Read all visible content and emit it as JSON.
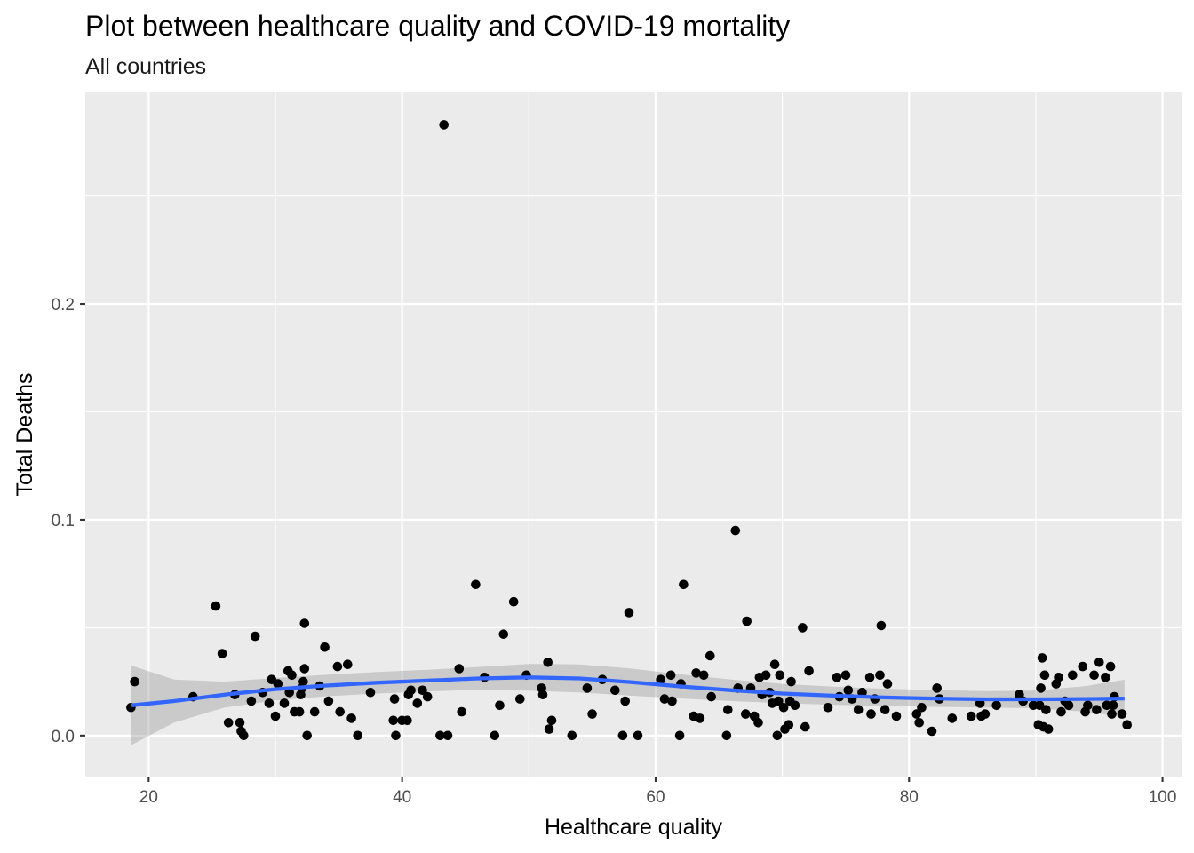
{
  "chart_data": {
    "type": "scatter",
    "title": "Plot between healthcare quality and COVID-19 mortality",
    "subtitle": "All countries",
    "xlabel": "Healthcare quality",
    "ylabel": "Total Deaths",
    "xlim": [
      15,
      101.5
    ],
    "ylim": [
      -0.019,
      0.298
    ],
    "x_ticks": [
      20,
      40,
      60,
      80,
      100
    ],
    "x_tick_labels": [
      "20",
      "40",
      "60",
      "80",
      "100"
    ],
    "y_ticks": [
      0.0,
      0.1,
      0.2
    ],
    "y_tick_labels": [
      "0.0",
      "0.1",
      "0.2"
    ],
    "grid": true,
    "colors": {
      "panel": "#ebebeb",
      "grid": "#ffffff",
      "points": "#000000",
      "smooth_line": "#3366ff",
      "ribbon": "#999999"
    },
    "points": [
      [
        18.6,
        0.013
      ],
      [
        18.9,
        0.025
      ],
      [
        23.5,
        0.018
      ],
      [
        25.3,
        0.06
      ],
      [
        25.8,
        0.038
      ],
      [
        26.3,
        0.006
      ],
      [
        26.8,
        0.019
      ],
      [
        27.2,
        0.006
      ],
      [
        27.3,
        0.002
      ],
      [
        27.5,
        0.0
      ],
      [
        28.1,
        0.016
      ],
      [
        28.4,
        0.046
      ],
      [
        29.0,
        0.02
      ],
      [
        29.5,
        0.015
      ],
      [
        29.7,
        0.026
      ],
      [
        30.0,
        0.009
      ],
      [
        30.2,
        0.024
      ],
      [
        30.7,
        0.015
      ],
      [
        31.0,
        0.03
      ],
      [
        31.1,
        0.02
      ],
      [
        31.3,
        0.028
      ],
      [
        31.5,
        0.011
      ],
      [
        31.9,
        0.011
      ],
      [
        32.0,
        0.019
      ],
      [
        32.1,
        0.022
      ],
      [
        32.2,
        0.025
      ],
      [
        32.3,
        0.031
      ],
      [
        32.3,
        0.052
      ],
      [
        32.5,
        0.0
      ],
      [
        33.1,
        0.011
      ],
      [
        33.5,
        0.023
      ],
      [
        33.9,
        0.041
      ],
      [
        34.2,
        0.016
      ],
      [
        34.9,
        0.032
      ],
      [
        35.1,
        0.011
      ],
      [
        35.7,
        0.033
      ],
      [
        36.0,
        0.008
      ],
      [
        36.5,
        0.0
      ],
      [
        37.5,
        0.02
      ],
      [
        39.3,
        0.007
      ],
      [
        39.4,
        0.017
      ],
      [
        39.5,
        0.0
      ],
      [
        40.0,
        0.007
      ],
      [
        40.4,
        0.007
      ],
      [
        40.5,
        0.019
      ],
      [
        40.7,
        0.021
      ],
      [
        41.2,
        0.015
      ],
      [
        41.6,
        0.021
      ],
      [
        42.0,
        0.018
      ],
      [
        43.0,
        0.0
      ],
      [
        43.3,
        0.283
      ],
      [
        43.6,
        0.0
      ],
      [
        44.5,
        0.031
      ],
      [
        44.7,
        0.011
      ],
      [
        45.8,
        0.07
      ],
      [
        46.5,
        0.027
      ],
      [
        47.3,
        0.0
      ],
      [
        47.7,
        0.014
      ],
      [
        48.0,
        0.047
      ],
      [
        48.8,
        0.062
      ],
      [
        49.3,
        0.017
      ],
      [
        49.8,
        0.028
      ],
      [
        51.0,
        0.022
      ],
      [
        51.1,
        0.019
      ],
      [
        51.5,
        0.034
      ],
      [
        51.6,
        0.003
      ],
      [
        51.8,
        0.007
      ],
      [
        53.4,
        0.0
      ],
      [
        54.6,
        0.022
      ],
      [
        55.0,
        0.01
      ],
      [
        55.8,
        0.026
      ],
      [
        56.8,
        0.021
      ],
      [
        57.4,
        0.0
      ],
      [
        57.6,
        0.016
      ],
      [
        57.9,
        0.057
      ],
      [
        58.6,
        0.0
      ],
      [
        60.4,
        0.026
      ],
      [
        60.7,
        0.017
      ],
      [
        61.2,
        0.028
      ],
      [
        61.3,
        0.016
      ],
      [
        61.9,
        0.0
      ],
      [
        62.0,
        0.024
      ],
      [
        62.2,
        0.07
      ],
      [
        63.0,
        0.009
      ],
      [
        63.2,
        0.029
      ],
      [
        63.5,
        0.008
      ],
      [
        63.8,
        0.028
      ],
      [
        64.3,
        0.037
      ],
      [
        64.4,
        0.018
      ],
      [
        65.6,
        0.0
      ],
      [
        65.7,
        0.012
      ],
      [
        66.3,
        0.095
      ],
      [
        66.5,
        0.022
      ],
      [
        67.1,
        0.01
      ],
      [
        67.2,
        0.053
      ],
      [
        67.5,
        0.022
      ],
      [
        67.8,
        0.009
      ],
      [
        68.1,
        0.006
      ],
      [
        68.2,
        0.027
      ],
      [
        68.4,
        0.019
      ],
      [
        68.7,
        0.028
      ],
      [
        69.0,
        0.02
      ],
      [
        69.2,
        0.015
      ],
      [
        69.4,
        0.033
      ],
      [
        69.6,
        0.0
      ],
      [
        69.7,
        0.016
      ],
      [
        69.8,
        0.028
      ],
      [
        70.1,
        0.013
      ],
      [
        70.2,
        0.003
      ],
      [
        70.5,
        0.005
      ],
      [
        70.6,
        0.016
      ],
      [
        70.7,
        0.025
      ],
      [
        71.0,
        0.014
      ],
      [
        71.6,
        0.05
      ],
      [
        71.8,
        0.004
      ],
      [
        72.1,
        0.03
      ],
      [
        73.6,
        0.013
      ],
      [
        74.3,
        0.027
      ],
      [
        74.5,
        0.018
      ],
      [
        75.0,
        0.028
      ],
      [
        75.2,
        0.021
      ],
      [
        75.5,
        0.017
      ],
      [
        76.0,
        0.012
      ],
      [
        76.3,
        0.02
      ],
      [
        76.9,
        0.027
      ],
      [
        77.0,
        0.01
      ],
      [
        77.3,
        0.017
      ],
      [
        77.7,
        0.028
      ],
      [
        77.8,
        0.051
      ],
      [
        78.1,
        0.012
      ],
      [
        78.3,
        0.024
      ],
      [
        79.0,
        0.009
      ],
      [
        80.6,
        0.01
      ],
      [
        80.8,
        0.006
      ],
      [
        81.0,
        0.013
      ],
      [
        81.8,
        0.002
      ],
      [
        82.2,
        0.022
      ],
      [
        82.4,
        0.017
      ],
      [
        83.4,
        0.008
      ],
      [
        84.9,
        0.009
      ],
      [
        85.6,
        0.015
      ],
      [
        85.7,
        0.009
      ],
      [
        86.0,
        0.01
      ],
      [
        86.9,
        0.014
      ],
      [
        88.7,
        0.019
      ],
      [
        89.0,
        0.016
      ],
      [
        89.8,
        0.014
      ],
      [
        90.2,
        0.005
      ],
      [
        90.3,
        0.014
      ],
      [
        90.4,
        0.022
      ],
      [
        90.5,
        0.036
      ],
      [
        90.6,
        0.004
      ],
      [
        90.7,
        0.028
      ],
      [
        90.8,
        0.012
      ],
      [
        91.0,
        0.003
      ],
      [
        91.6,
        0.024
      ],
      [
        91.8,
        0.027
      ],
      [
        92.0,
        0.011
      ],
      [
        92.3,
        0.016
      ],
      [
        92.6,
        0.014
      ],
      [
        92.9,
        0.028
      ],
      [
        93.7,
        0.032
      ],
      [
        93.9,
        0.011
      ],
      [
        94.1,
        0.014
      ],
      [
        94.6,
        0.028
      ],
      [
        94.8,
        0.012
      ],
      [
        95.0,
        0.034
      ],
      [
        95.5,
        0.027
      ],
      [
        95.6,
        0.014
      ],
      [
        95.9,
        0.032
      ],
      [
        96.0,
        0.01
      ],
      [
        96.1,
        0.014
      ],
      [
        96.2,
        0.018
      ],
      [
        96.8,
        0.01
      ],
      [
        97.2,
        0.005
      ]
    ],
    "smooth_line": {
      "x": [
        18.6,
        22,
        26,
        30,
        34,
        38,
        42,
        46,
        50,
        54,
        58,
        62,
        66,
        70,
        74,
        78,
        82,
        86,
        90,
        94,
        97
      ],
      "y": [
        0.014,
        0.016,
        0.019,
        0.0215,
        0.0232,
        0.0245,
        0.0255,
        0.0265,
        0.027,
        0.0265,
        0.0248,
        0.0228,
        0.021,
        0.0195,
        0.0185,
        0.0177,
        0.0172,
        0.0168,
        0.0168,
        0.017,
        0.0172
      ],
      "ribbon_lower": [
        -0.0045,
        0.006,
        0.013,
        0.0163,
        0.0182,
        0.0195,
        0.0205,
        0.0212,
        0.0208,
        0.02,
        0.0185,
        0.0172,
        0.016,
        0.015,
        0.0143,
        0.0137,
        0.0133,
        0.013,
        0.0127,
        0.011,
        0.0085
      ],
      "ribbon_upper": [
        0.0325,
        0.026,
        0.025,
        0.0267,
        0.0282,
        0.0295,
        0.0305,
        0.0318,
        0.0332,
        0.033,
        0.0311,
        0.0284,
        0.026,
        0.024,
        0.0227,
        0.0217,
        0.0211,
        0.0206,
        0.0209,
        0.023,
        0.0259
      ]
    }
  }
}
